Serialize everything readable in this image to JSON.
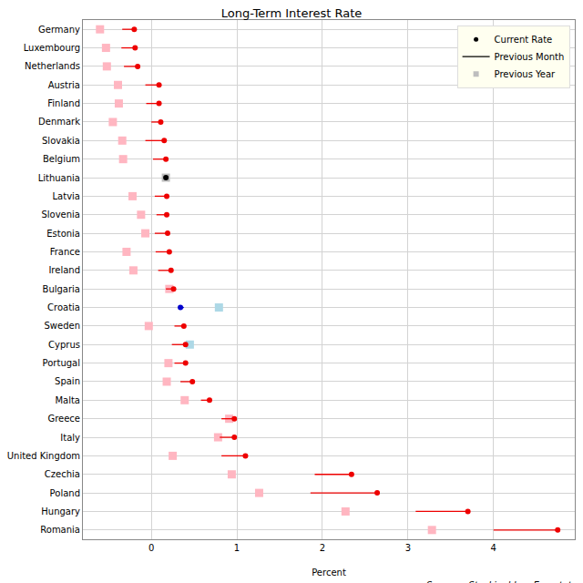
{
  "chart_data": {
    "type": "dot",
    "title": "Long-Term Interest Rate",
    "x_label": "Percent",
    "annotations": [
      "Sources: Stockingblue, Eurostat"
    ],
    "orientation": "horizontal",
    "categories": [
      "Germany",
      "Luxembourg",
      "Netherlands",
      "Austria",
      "Finland",
      "Denmark",
      "Slovakia",
      "Belgium",
      "Lithuania",
      "Latvia",
      "Slovenia",
      "Estonia",
      "France",
      "Ireland",
      "Bulgaria",
      "Croatia",
      "Sweden",
      "Cyprus",
      "Portugal",
      "Spain",
      "Malta",
      "Greece",
      "Italy",
      "United Kingdom",
      "Czechia",
      "Poland",
      "Hungary",
      "Romania"
    ],
    "series": [
      {
        "name": "Previous Year",
        "type": "scatter",
        "marker": "square",
        "color": "#bebebe",
        "values": [
          -0.6,
          -0.53,
          -0.52,
          -0.39,
          -0.38,
          -0.45,
          -0.34,
          -0.33,
          0.17,
          -0.22,
          -0.12,
          -0.07,
          -0.29,
          -0.21,
          0.21,
          0.79,
          -0.03,
          0.45,
          0.2,
          0.18,
          0.39,
          0.91,
          0.78,
          0.25,
          0.94,
          1.26,
          2.27,
          3.28
        ],
        "colors": [
          "#ffb6c1",
          "#ffb6c1",
          "#ffb6c1",
          "#ffb6c1",
          "#ffb6c1",
          "#ffb6c1",
          "#ffb6c1",
          "#ffb6c1",
          "#bebebe",
          "#ffb6c1",
          "#ffb6c1",
          "#ffb6c1",
          "#ffb6c1",
          "#ffb6c1",
          "#ffb6c1",
          "#add8e6",
          "#ffb6c1",
          "#add8e6",
          "#ffb6c1",
          "#ffb6c1",
          "#ffb6c1",
          "#ffb6c1",
          "#ffb6c1",
          "#ffb6c1",
          "#ffb6c1",
          "#ffb6c1",
          "#ffb6c1",
          "#ffb6c1"
        ]
      },
      {
        "name": "Previous Month",
        "type": "line",
        "line_style": "solid",
        "color": "#000000",
        "values": [
          -0.34,
          -0.35,
          -0.32,
          -0.07,
          -0.06,
          0.0,
          -0.07,
          0.02,
          0.17,
          0.04,
          0.06,
          0.04,
          0.05,
          0.08,
          0.17,
          0.38,
          0.27,
          0.24,
          0.27,
          0.34,
          0.58,
          0.82,
          0.8,
          0.82,
          1.91,
          1.86,
          3.09,
          4.0
        ],
        "colors": [
          "#ee0000",
          "#ee0000",
          "#ee0000",
          "#ee0000",
          "#ee0000",
          "#ee0000",
          "#ee0000",
          "#ee0000",
          "#000000",
          "#ee0000",
          "#ee0000",
          "#ee0000",
          "#ee0000",
          "#ee0000",
          "#ee0000",
          "#0000cc",
          "#ee0000",
          "#ee0000",
          "#ee0000",
          "#ee0000",
          "#ee0000",
          "#ee0000",
          "#ee0000",
          "#ee0000",
          "#ee0000",
          "#ee0000",
          "#ee0000",
          "#ee0000"
        ]
      },
      {
        "name": "Current Rate",
        "type": "scatter",
        "marker": "circle",
        "color": "#000000",
        "values": [
          -0.2,
          -0.19,
          -0.16,
          0.09,
          0.09,
          0.11,
          0.15,
          0.17,
          0.17,
          0.18,
          0.18,
          0.19,
          0.21,
          0.23,
          0.26,
          0.34,
          0.38,
          0.4,
          0.4,
          0.48,
          0.68,
          0.97,
          0.97,
          1.1,
          2.34,
          2.64,
          3.7,
          4.75
        ],
        "colors": [
          "#ee0000",
          "#ee0000",
          "#ee0000",
          "#ee0000",
          "#ee0000",
          "#ee0000",
          "#ee0000",
          "#ee0000",
          "#000000",
          "#ee0000",
          "#ee0000",
          "#ee0000",
          "#ee0000",
          "#ee0000",
          "#ee0000",
          "#0000cc",
          "#ee0000",
          "#ee0000",
          "#ee0000",
          "#ee0000",
          "#ee0000",
          "#ee0000",
          "#ee0000",
          "#ee0000",
          "#ee0000",
          "#ee0000",
          "#ee0000",
          "#ee0000"
        ]
      }
    ],
    "xlim": [
      -0.8,
      4.95
    ],
    "xticks": [
      0,
      1,
      2,
      3,
      4
    ],
    "grid": true,
    "legend": "top-right"
  }
}
